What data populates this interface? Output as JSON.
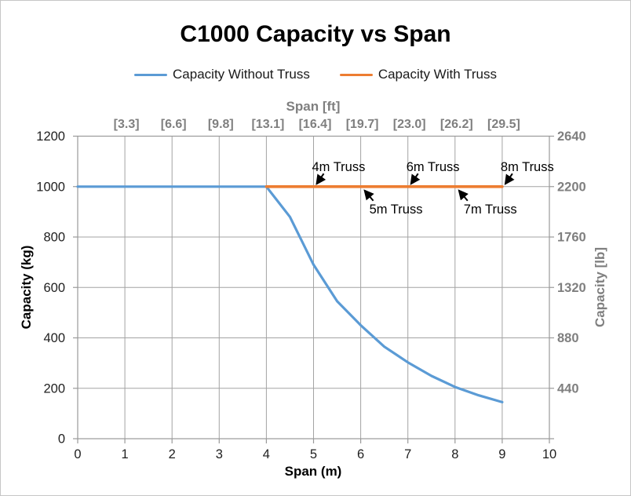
{
  "chart_data": {
    "type": "line",
    "title": "C1000 Capacity vs Span",
    "grid": true,
    "legend_position": "top",
    "x_axis": {
      "label": "Span (m)",
      "range": [
        0,
        10
      ],
      "ticks": [
        0,
        1,
        2,
        3,
        4,
        5,
        6,
        7,
        8,
        9,
        10
      ]
    },
    "x_axis_top": {
      "label": "Span [ft]",
      "tick_labels": [
        "[3.3]",
        "[6.6]",
        "[9.8]",
        "[13.1]",
        "[16.4]",
        "[19.7]",
        "[23.0]",
        "[26.2]",
        "[29.5]"
      ],
      "tick_positions": [
        1,
        2,
        3,
        4,
        5,
        6,
        7,
        8,
        9
      ]
    },
    "y_axis": {
      "label": "Capacity (kg)",
      "range": [
        0,
        1200
      ],
      "ticks": [
        0,
        200,
        400,
        600,
        800,
        1000,
        1200
      ]
    },
    "y_axis_right": {
      "label": "Capacity [lb]",
      "tick_labels": [
        "440",
        "880",
        "1320",
        "1760",
        "2200",
        "2640"
      ],
      "tick_positions_kg": [
        200,
        400,
        600,
        800,
        1000,
        1200
      ]
    },
    "series": [
      {
        "name": "Capacity Without Truss",
        "color": "#5B9BD5",
        "points": [
          [
            0,
            1000
          ],
          [
            4,
            1000
          ],
          [
            4.5,
            880
          ],
          [
            5,
            690
          ],
          [
            5.5,
            545
          ],
          [
            6,
            450
          ],
          [
            6.5,
            365
          ],
          [
            7,
            303
          ],
          [
            7.5,
            249
          ],
          [
            8,
            205
          ],
          [
            8.5,
            172
          ],
          [
            9,
            145
          ]
        ]
      },
      {
        "name": "Capacity With Truss",
        "color": "#ED7D31",
        "points": [
          [
            4,
            1000
          ],
          [
            9,
            1000
          ]
        ]
      }
    ],
    "annotations": [
      {
        "label": "4m Truss",
        "target_span": 5,
        "value": 1000,
        "side": "above"
      },
      {
        "label": "5m Truss",
        "target_span": 6,
        "value": 1000,
        "side": "below"
      },
      {
        "label": "6m Truss",
        "target_span": 7,
        "value": 1000,
        "side": "above"
      },
      {
        "label": "7m Truss",
        "target_span": 8,
        "value": 1000,
        "side": "below"
      },
      {
        "label": "8m Truss",
        "target_span": 9,
        "value": 1000,
        "side": "above"
      }
    ],
    "colors": {
      "gridline": "#a3a3a3",
      "plot_border": "#9a9a9a",
      "axis_text_black": "#1f1f1f",
      "axis_text_gray": "#7f7f7f",
      "annotation_text": "#000000"
    }
  }
}
